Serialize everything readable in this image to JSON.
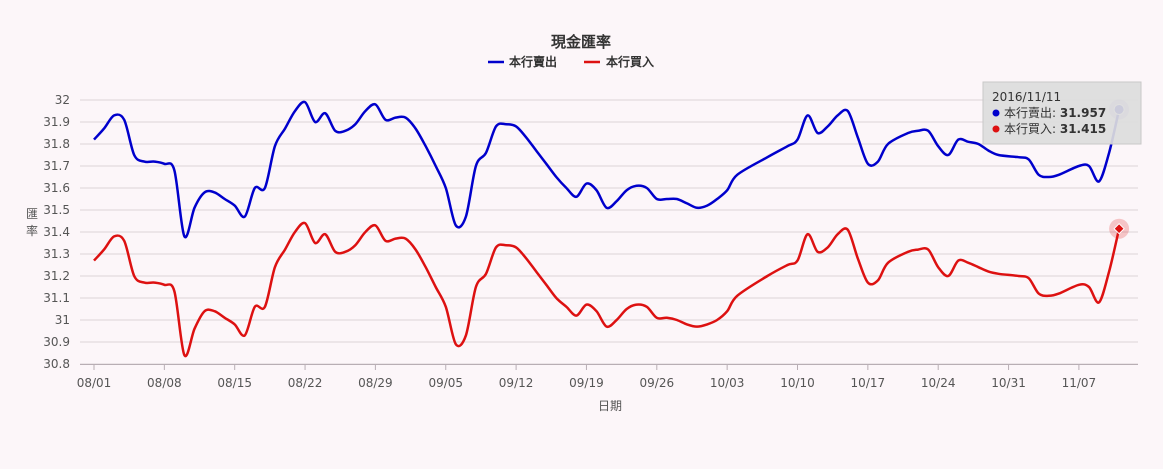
{
  "chart_data": {
    "type": "line",
    "title": "現金匯率",
    "xlabel": "日期",
    "ylabel": "匯率",
    "ylim": [
      30.8,
      32.0
    ],
    "y_ticks": [
      "30.8",
      "30.9",
      "31",
      "31.1",
      "31.2",
      "31.3",
      "31.4",
      "31.5",
      "31.6",
      "31.7",
      "31.8",
      "31.9",
      "32"
    ],
    "x_tick_labels": [
      "08/01",
      "08/08",
      "08/15",
      "08/22",
      "08/29",
      "09/05",
      "09/12",
      "09/19",
      "09/26",
      "10/03",
      "10/10",
      "10/17",
      "10/24",
      "10/31",
      "11/07"
    ],
    "x_range_days": [
      0,
      103
    ],
    "grid": true,
    "legend_position": "top-center",
    "series": [
      {
        "name": "本行賣出",
        "color": "#0000cc",
        "points": [
          [
            0,
            31.82
          ],
          [
            1,
            31.87
          ],
          [
            2,
            31.93
          ],
          [
            3,
            31.91
          ],
          [
            4,
            31.75
          ],
          [
            5,
            31.72
          ],
          [
            6,
            31.72
          ],
          [
            7,
            31.71
          ],
          [
            8,
            31.68
          ],
          [
            9,
            31.38
          ],
          [
            10,
            31.51
          ],
          [
            11,
            31.58
          ],
          [
            12,
            31.58
          ],
          [
            13,
            31.55
          ],
          [
            14,
            31.52
          ],
          [
            15,
            31.47
          ],
          [
            16,
            31.6
          ],
          [
            17,
            31.6
          ],
          [
            18,
            31.79
          ],
          [
            19,
            31.87
          ],
          [
            20,
            31.95
          ],
          [
            21,
            31.99
          ],
          [
            22,
            31.9
          ],
          [
            23,
            31.94
          ],
          [
            24,
            31.86
          ],
          [
            25,
            31.86
          ],
          [
            26,
            31.89
          ],
          [
            27,
            31.95
          ],
          [
            28,
            31.98
          ],
          [
            29,
            31.91
          ],
          [
            30,
            31.92
          ],
          [
            31,
            31.92
          ],
          [
            32,
            31.87
          ],
          [
            33,
            31.79
          ],
          [
            34,
            31.7
          ],
          [
            35,
            31.6
          ],
          [
            36,
            31.43
          ],
          [
            37,
            31.47
          ],
          [
            38,
            31.7
          ],
          [
            39,
            31.76
          ],
          [
            40,
            31.88
          ],
          [
            41,
            31.89
          ],
          [
            42,
            31.88
          ],
          [
            43,
            31.83
          ],
          [
            44,
            31.77
          ],
          [
            45,
            31.71
          ],
          [
            46,
            31.65
          ],
          [
            47,
            31.6
          ],
          [
            48,
            31.56
          ],
          [
            49,
            31.62
          ],
          [
            50,
            31.59
          ],
          [
            51,
            31.51
          ],
          [
            52,
            31.54
          ],
          [
            53,
            31.59
          ],
          [
            54,
            31.61
          ],
          [
            55,
            31.6
          ],
          [
            56,
            31.55
          ],
          [
            57,
            31.55
          ],
          [
            58,
            31.55
          ],
          [
            59,
            31.53
          ],
          [
            60,
            31.51
          ],
          [
            61,
            31.52
          ],
          [
            62,
            31.55
          ],
          [
            63,
            31.59
          ],
          [
            64,
            31.66
          ],
          [
            67,
            31.74
          ],
          [
            69,
            31.79
          ],
          [
            70,
            31.82
          ],
          [
            71,
            31.93
          ],
          [
            72,
            31.85
          ],
          [
            73,
            31.88
          ],
          [
            74,
            31.93
          ],
          [
            75,
            31.95
          ],
          [
            76,
            31.83
          ],
          [
            77,
            31.71
          ],
          [
            78,
            31.72
          ],
          [
            79,
            31.8
          ],
          [
            81,
            31.85
          ],
          [
            82,
            31.86
          ],
          [
            83,
            31.86
          ],
          [
            84,
            31.79
          ],
          [
            85,
            31.75
          ],
          [
            86,
            31.82
          ],
          [
            87,
            31.81
          ],
          [
            88,
            31.8
          ],
          [
            89,
            31.77
          ],
          [
            90,
            31.75
          ],
          [
            92,
            31.74
          ],
          [
            93,
            31.73
          ],
          [
            94,
            31.66
          ],
          [
            95,
            31.65
          ],
          [
            96,
            31.66
          ],
          [
            98,
            31.7
          ],
          [
            99,
            31.7
          ],
          [
            100,
            31.63
          ],
          [
            101,
            31.76
          ],
          [
            102,
            31.957
          ]
        ]
      },
      {
        "name": "本行買入",
        "color": "#dd1111",
        "points": [
          [
            0,
            31.27
          ],
          [
            1,
            31.32
          ],
          [
            2,
            31.38
          ],
          [
            3,
            31.36
          ],
          [
            4,
            31.2
          ],
          [
            5,
            31.17
          ],
          [
            6,
            31.17
          ],
          [
            7,
            31.16
          ],
          [
            8,
            31.13
          ],
          [
            9,
            30.84
          ],
          [
            10,
            30.96
          ],
          [
            11,
            31.04
          ],
          [
            12,
            31.04
          ],
          [
            13,
            31.01
          ],
          [
            14,
            30.98
          ],
          [
            15,
            30.93
          ],
          [
            16,
            31.06
          ],
          [
            17,
            31.06
          ],
          [
            18,
            31.24
          ],
          [
            19,
            31.32
          ],
          [
            20,
            31.4
          ],
          [
            21,
            31.44
          ],
          [
            22,
            31.35
          ],
          [
            23,
            31.39
          ],
          [
            24,
            31.31
          ],
          [
            25,
            31.31
          ],
          [
            26,
            31.34
          ],
          [
            27,
            31.4
          ],
          [
            28,
            31.43
          ],
          [
            29,
            31.36
          ],
          [
            30,
            31.37
          ],
          [
            31,
            31.37
          ],
          [
            32,
            31.32
          ],
          [
            33,
            31.24
          ],
          [
            34,
            31.15
          ],
          [
            35,
            31.06
          ],
          [
            36,
            30.89
          ],
          [
            37,
            30.93
          ],
          [
            38,
            31.15
          ],
          [
            39,
            31.21
          ],
          [
            40,
            31.33
          ],
          [
            41,
            31.34
          ],
          [
            42,
            31.33
          ],
          [
            43,
            31.28
          ],
          [
            44,
            31.22
          ],
          [
            45,
            31.16
          ],
          [
            46,
            31.1
          ],
          [
            47,
            31.06
          ],
          [
            48,
            31.02
          ],
          [
            49,
            31.07
          ],
          [
            50,
            31.04
          ],
          [
            51,
            30.97
          ],
          [
            52,
            31.0
          ],
          [
            53,
            31.05
          ],
          [
            54,
            31.07
          ],
          [
            55,
            31.06
          ],
          [
            56,
            31.01
          ],
          [
            57,
            31.01
          ],
          [
            58,
            31.0
          ],
          [
            59,
            30.98
          ],
          [
            60,
            30.97
          ],
          [
            61,
            30.98
          ],
          [
            62,
            31.0
          ],
          [
            63,
            31.04
          ],
          [
            64,
            31.11
          ],
          [
            67,
            31.2
          ],
          [
            69,
            31.25
          ],
          [
            70,
            31.27
          ],
          [
            71,
            31.39
          ],
          [
            72,
            31.31
          ],
          [
            73,
            31.33
          ],
          [
            74,
            31.39
          ],
          [
            75,
            31.41
          ],
          [
            76,
            31.28
          ],
          [
            77,
            31.17
          ],
          [
            78,
            31.18
          ],
          [
            79,
            31.26
          ],
          [
            81,
            31.31
          ],
          [
            82,
            31.32
          ],
          [
            83,
            31.32
          ],
          [
            84,
            31.24
          ],
          [
            85,
            31.2
          ],
          [
            86,
            31.27
          ],
          [
            87,
            31.26
          ],
          [
            88,
            31.24
          ],
          [
            89,
            31.22
          ],
          [
            90,
            31.21
          ],
          [
            92,
            31.2
          ],
          [
            93,
            31.19
          ],
          [
            94,
            31.12
          ],
          [
            95,
            31.11
          ],
          [
            96,
            31.12
          ],
          [
            98,
            31.16
          ],
          [
            99,
            31.15
          ],
          [
            100,
            31.08
          ],
          [
            101,
            31.22
          ],
          [
            102,
            31.415
          ]
        ]
      }
    ],
    "tooltip": {
      "date": "2016/11/11",
      "rows": [
        {
          "label": "本行賣出: ",
          "value": "31.957",
          "color": "#0000cc"
        },
        {
          "label": "本行買入: ",
          "value": "31.415",
          "color": "#dd1111"
        }
      ]
    }
  }
}
